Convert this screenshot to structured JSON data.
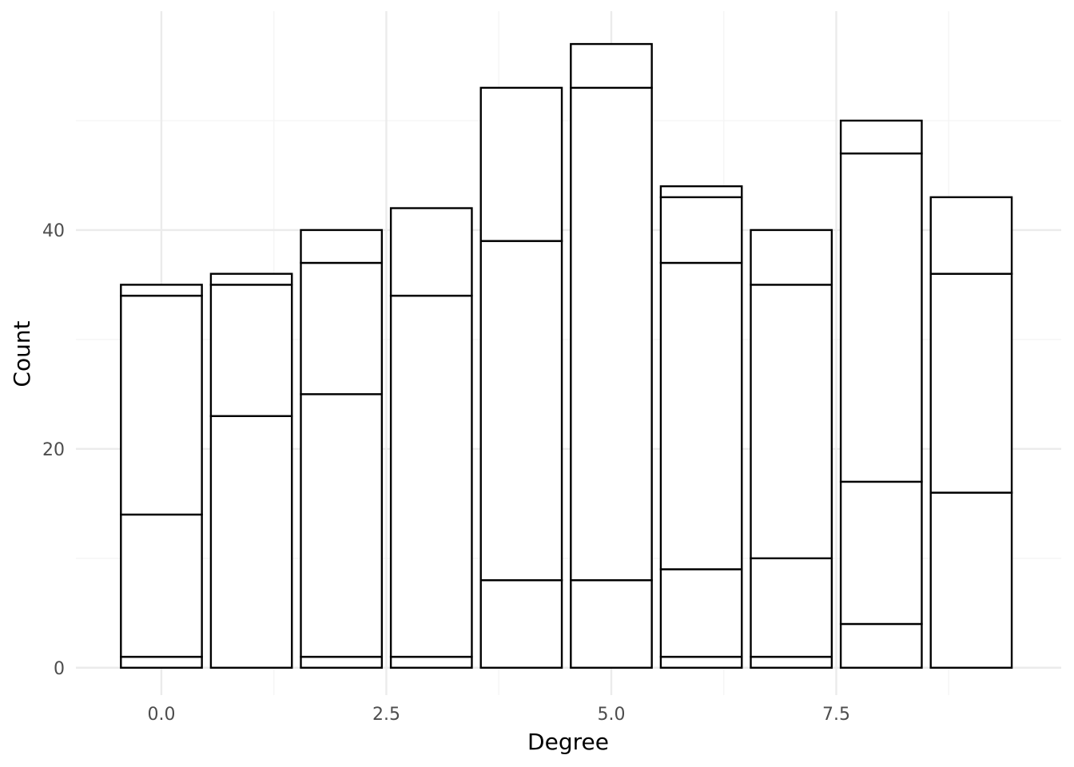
{
  "chart_data": {
    "type": "bar",
    "stacked": true,
    "title": "",
    "xlabel": "Degree",
    "ylabel": "Count",
    "x_ticks": [
      "0.0",
      "2.5",
      "5.0",
      "7.5"
    ],
    "x_tick_values": [
      0.0,
      2.5,
      5.0,
      7.5
    ],
    "y_ticks": [
      "0",
      "20",
      "40"
    ],
    "y_tick_values": [
      0,
      20,
      40
    ],
    "xlim": [
      -0.95,
      10.0
    ],
    "ylim": [
      -2.5,
      60.0
    ],
    "bar_width": 0.9,
    "grid": true,
    "legend": "none",
    "colors": {
      "bar_fill": "#ffffff",
      "bar_outline": "#000000",
      "grid_major": "#ebebeb",
      "grid_minor": "#f5f5f5",
      "background": "#ffffff"
    },
    "x": [
      0,
      1,
      2,
      3,
      4,
      5,
      6,
      7,
      8,
      9
    ],
    "stacks": [
      [
        1,
        13,
        20,
        1
      ],
      [
        0,
        23,
        12,
        1
      ],
      [
        1,
        24,
        12,
        3
      ],
      [
        1,
        33,
        8
      ],
      [
        8,
        31,
        14
      ],
      [
        8,
        45,
        4
      ],
      [
        1,
        8,
        28,
        6,
        1
      ],
      [
        1,
        9,
        25,
        5
      ],
      [
        4,
        13,
        30,
        3
      ],
      [
        16,
        20,
        7
      ]
    ],
    "totals": [
      35,
      36,
      40,
      42,
      53,
      57,
      44,
      40,
      50,
      43
    ]
  }
}
